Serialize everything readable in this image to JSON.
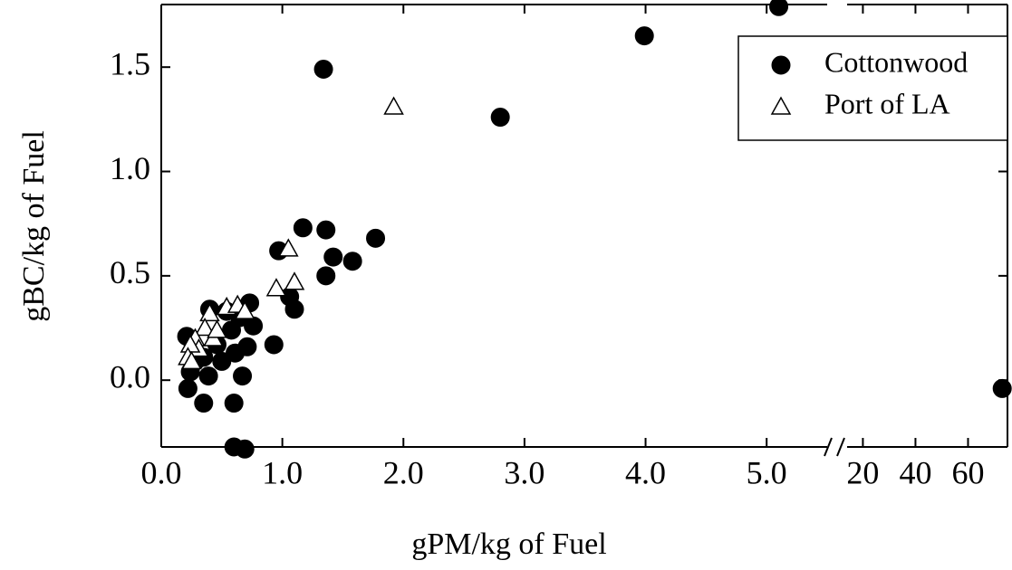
{
  "chart_data": {
    "type": "scatter",
    "x_label": "gPM/kg of Fuel",
    "y_label": "gBC/kg of Fuel",
    "x_segments": [
      {
        "xlim": [
          0,
          5.5
        ],
        "xticks": [
          {
            "value": 0,
            "label": "0.0"
          },
          {
            "value": 1,
            "label": "1.0"
          },
          {
            "value": 2,
            "label": "2.0"
          },
          {
            "value": 3,
            "label": "3.0"
          },
          {
            "value": 4,
            "label": "4.0"
          },
          {
            "value": 5,
            "label": "5.0"
          }
        ]
      },
      {
        "xlim": [
          14,
          75
        ],
        "xticks": [
          20,
          40,
          60
        ]
      }
    ],
    "ylim": [
      -0.32,
      1.8
    ],
    "yticks": [
      {
        "value": 0,
        "label": "0.0"
      },
      {
        "value": 0.5,
        "label": "0.5"
      },
      {
        "value": 1,
        "label": "1.0"
      },
      {
        "value": 1.5,
        "label": "1.5"
      }
    ],
    "legend": "upper right",
    "series": [
      {
        "name": "Cottonwood",
        "color": "#000000",
        "marker": "circle",
        "x": [
          1.34,
          2.8,
          3.99,
          5.1,
          73,
          0.97,
          1.17,
          1.36,
          1.36,
          1.42,
          1.58,
          1.77,
          1.06,
          1.1,
          0.93,
          0.73,
          0.76,
          0.71,
          0.67,
          0.6,
          0.6,
          0.69,
          0.35,
          0.22,
          0.21,
          0.4,
          0.24,
          0.39,
          0.5,
          0.61,
          0.58,
          0.46,
          0.54,
          0.35,
          0.28,
          0.65
        ],
        "values": [
          1.49,
          1.26,
          1.65,
          1.79,
          -0.04,
          0.62,
          0.73,
          0.72,
          0.5,
          0.59,
          0.57,
          0.68,
          0.4,
          0.34,
          0.17,
          0.37,
          0.26,
          0.16,
          0.02,
          -0.11,
          -0.32,
          -0.33,
          -0.11,
          -0.04,
          0.21,
          0.34,
          0.04,
          0.02,
          0.09,
          0.13,
          0.24,
          0.17,
          0.33,
          0.11,
          0.09,
          0.3
        ]
      },
      {
        "name": "Port of LA",
        "color": "#ffffff",
        "marker": "triangle",
        "x": [
          1.92,
          1.05,
          1.1,
          0.95,
          0.4,
          0.54,
          0.63,
          0.69,
          0.36,
          0.43,
          0.28,
          0.31,
          0.24,
          0.22,
          0.46,
          0.25
        ],
        "values": [
          1.31,
          0.63,
          0.47,
          0.44,
          0.32,
          0.35,
          0.36,
          0.33,
          0.25,
          0.2,
          0.2,
          0.15,
          0.17,
          0.11,
          0.24,
          0.09
        ]
      }
    ]
  }
}
